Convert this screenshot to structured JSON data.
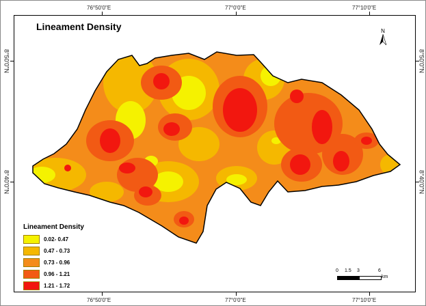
{
  "title": "Lineament Density",
  "graticule": {
    "top_labels": [
      "76°50'0\"E",
      "77°0'0\"E",
      "77°10'0\"E"
    ],
    "bottom_labels": [
      "76°50'0\"E",
      "77°0'0\"E",
      "77°10'0\"E"
    ],
    "left_labels": [
      "8°50'0\"N",
      "8°40'0\"N"
    ],
    "right_labels": [
      "8°50'0\"N",
      "8°40'0\"N"
    ]
  },
  "north_arrow": {
    "label": "N",
    "icon": "north-arrow-icon"
  },
  "legend": {
    "title": "Lineament Density",
    "classes": [
      {
        "label": "0.02- 0.47",
        "color": "#f5f200"
      },
      {
        "label": "0.47 - 0.73",
        "color": "#f5b800"
      },
      {
        "label": "0.73 - 0.96",
        "color": "#f48c1a"
      },
      {
        "label": "0.96 - 1.21",
        "color": "#f25a14"
      },
      {
        "label": "1.21 - 1.72",
        "color": "#f2170f"
      }
    ]
  },
  "scale_bar": {
    "ticks": [
      "0",
      "1.5",
      "3",
      "6"
    ],
    "unit": "km"
  }
}
